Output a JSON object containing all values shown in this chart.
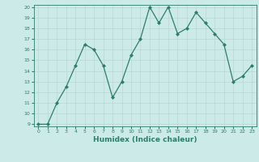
{
  "x": [
    0,
    1,
    2,
    3,
    4,
    5,
    6,
    7,
    8,
    9,
    10,
    11,
    12,
    13,
    14,
    15,
    16,
    17,
    18,
    19,
    20,
    21,
    22,
    23
  ],
  "y": [
    9,
    9,
    11,
    12.5,
    14.5,
    16.5,
    16,
    14.5,
    11.5,
    13,
    15.5,
    17,
    20,
    18.5,
    20,
    17.5,
    18,
    19.5,
    18.5,
    17.5,
    16.5,
    13,
    13.5,
    14.5
  ],
  "line_color": "#2e7d6e",
  "marker": "D",
  "marker_size": 2,
  "bg_color": "#cceae8",
  "grid_color": "#b8d8d4",
  "xlabel": "Humidex (Indice chaleur)",
  "xlim": [
    -0.5,
    23.5
  ],
  "ylim": [
    9,
    20
  ],
  "yticks": [
    9,
    10,
    11,
    12,
    13,
    14,
    15,
    16,
    17,
    18,
    19,
    20
  ],
  "xticks": [
    0,
    1,
    2,
    3,
    4,
    5,
    6,
    7,
    8,
    9,
    10,
    11,
    12,
    13,
    14,
    15,
    16,
    17,
    18,
    19,
    20,
    21,
    22,
    23
  ]
}
